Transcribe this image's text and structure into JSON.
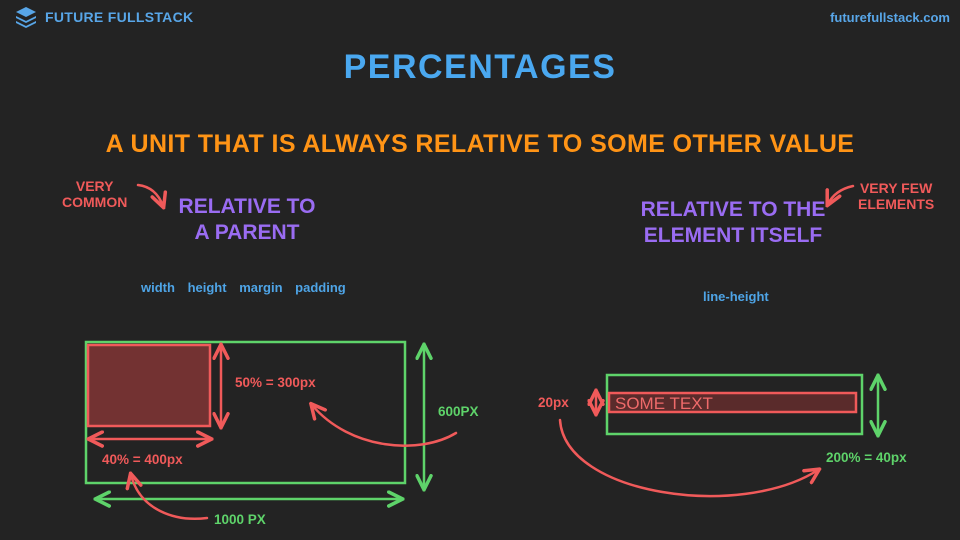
{
  "brand": {
    "name": "FUTURE FULLSTACK",
    "url": "futurefullstack.com"
  },
  "title": "PERCENTAGES",
  "subtitle": "A UNIT THAT IS ALWAYS RELATIVE TO SOME OTHER VALUE",
  "left": {
    "note_line1": "VERY",
    "note_line2": "COMMON",
    "heading_line1": "RELATIVE TO",
    "heading_line2": "A PARENT",
    "properties": [
      "width",
      "height",
      "margin",
      "padding"
    ],
    "height_label": "50% = 300px",
    "parent_height": "600PX",
    "width_label": "40% = 400px",
    "parent_width": "1000 PX"
  },
  "right": {
    "note_line1": "VERY FEW",
    "note_line2": "ELEMENTS",
    "heading_line1": "RELATIVE TO THE",
    "heading_line2": "ELEMENT ITSELF",
    "property": "line-height",
    "font_size_label": "20px",
    "sample_text": "SOME TEXT",
    "result_label": "200% = 40px"
  },
  "colors": {
    "blue": "#4aa8f0",
    "orange": "#ff9416",
    "purple": "#9a6cf2",
    "red": "#f05a5a",
    "green": "#5ed36a",
    "background": "#232323"
  }
}
